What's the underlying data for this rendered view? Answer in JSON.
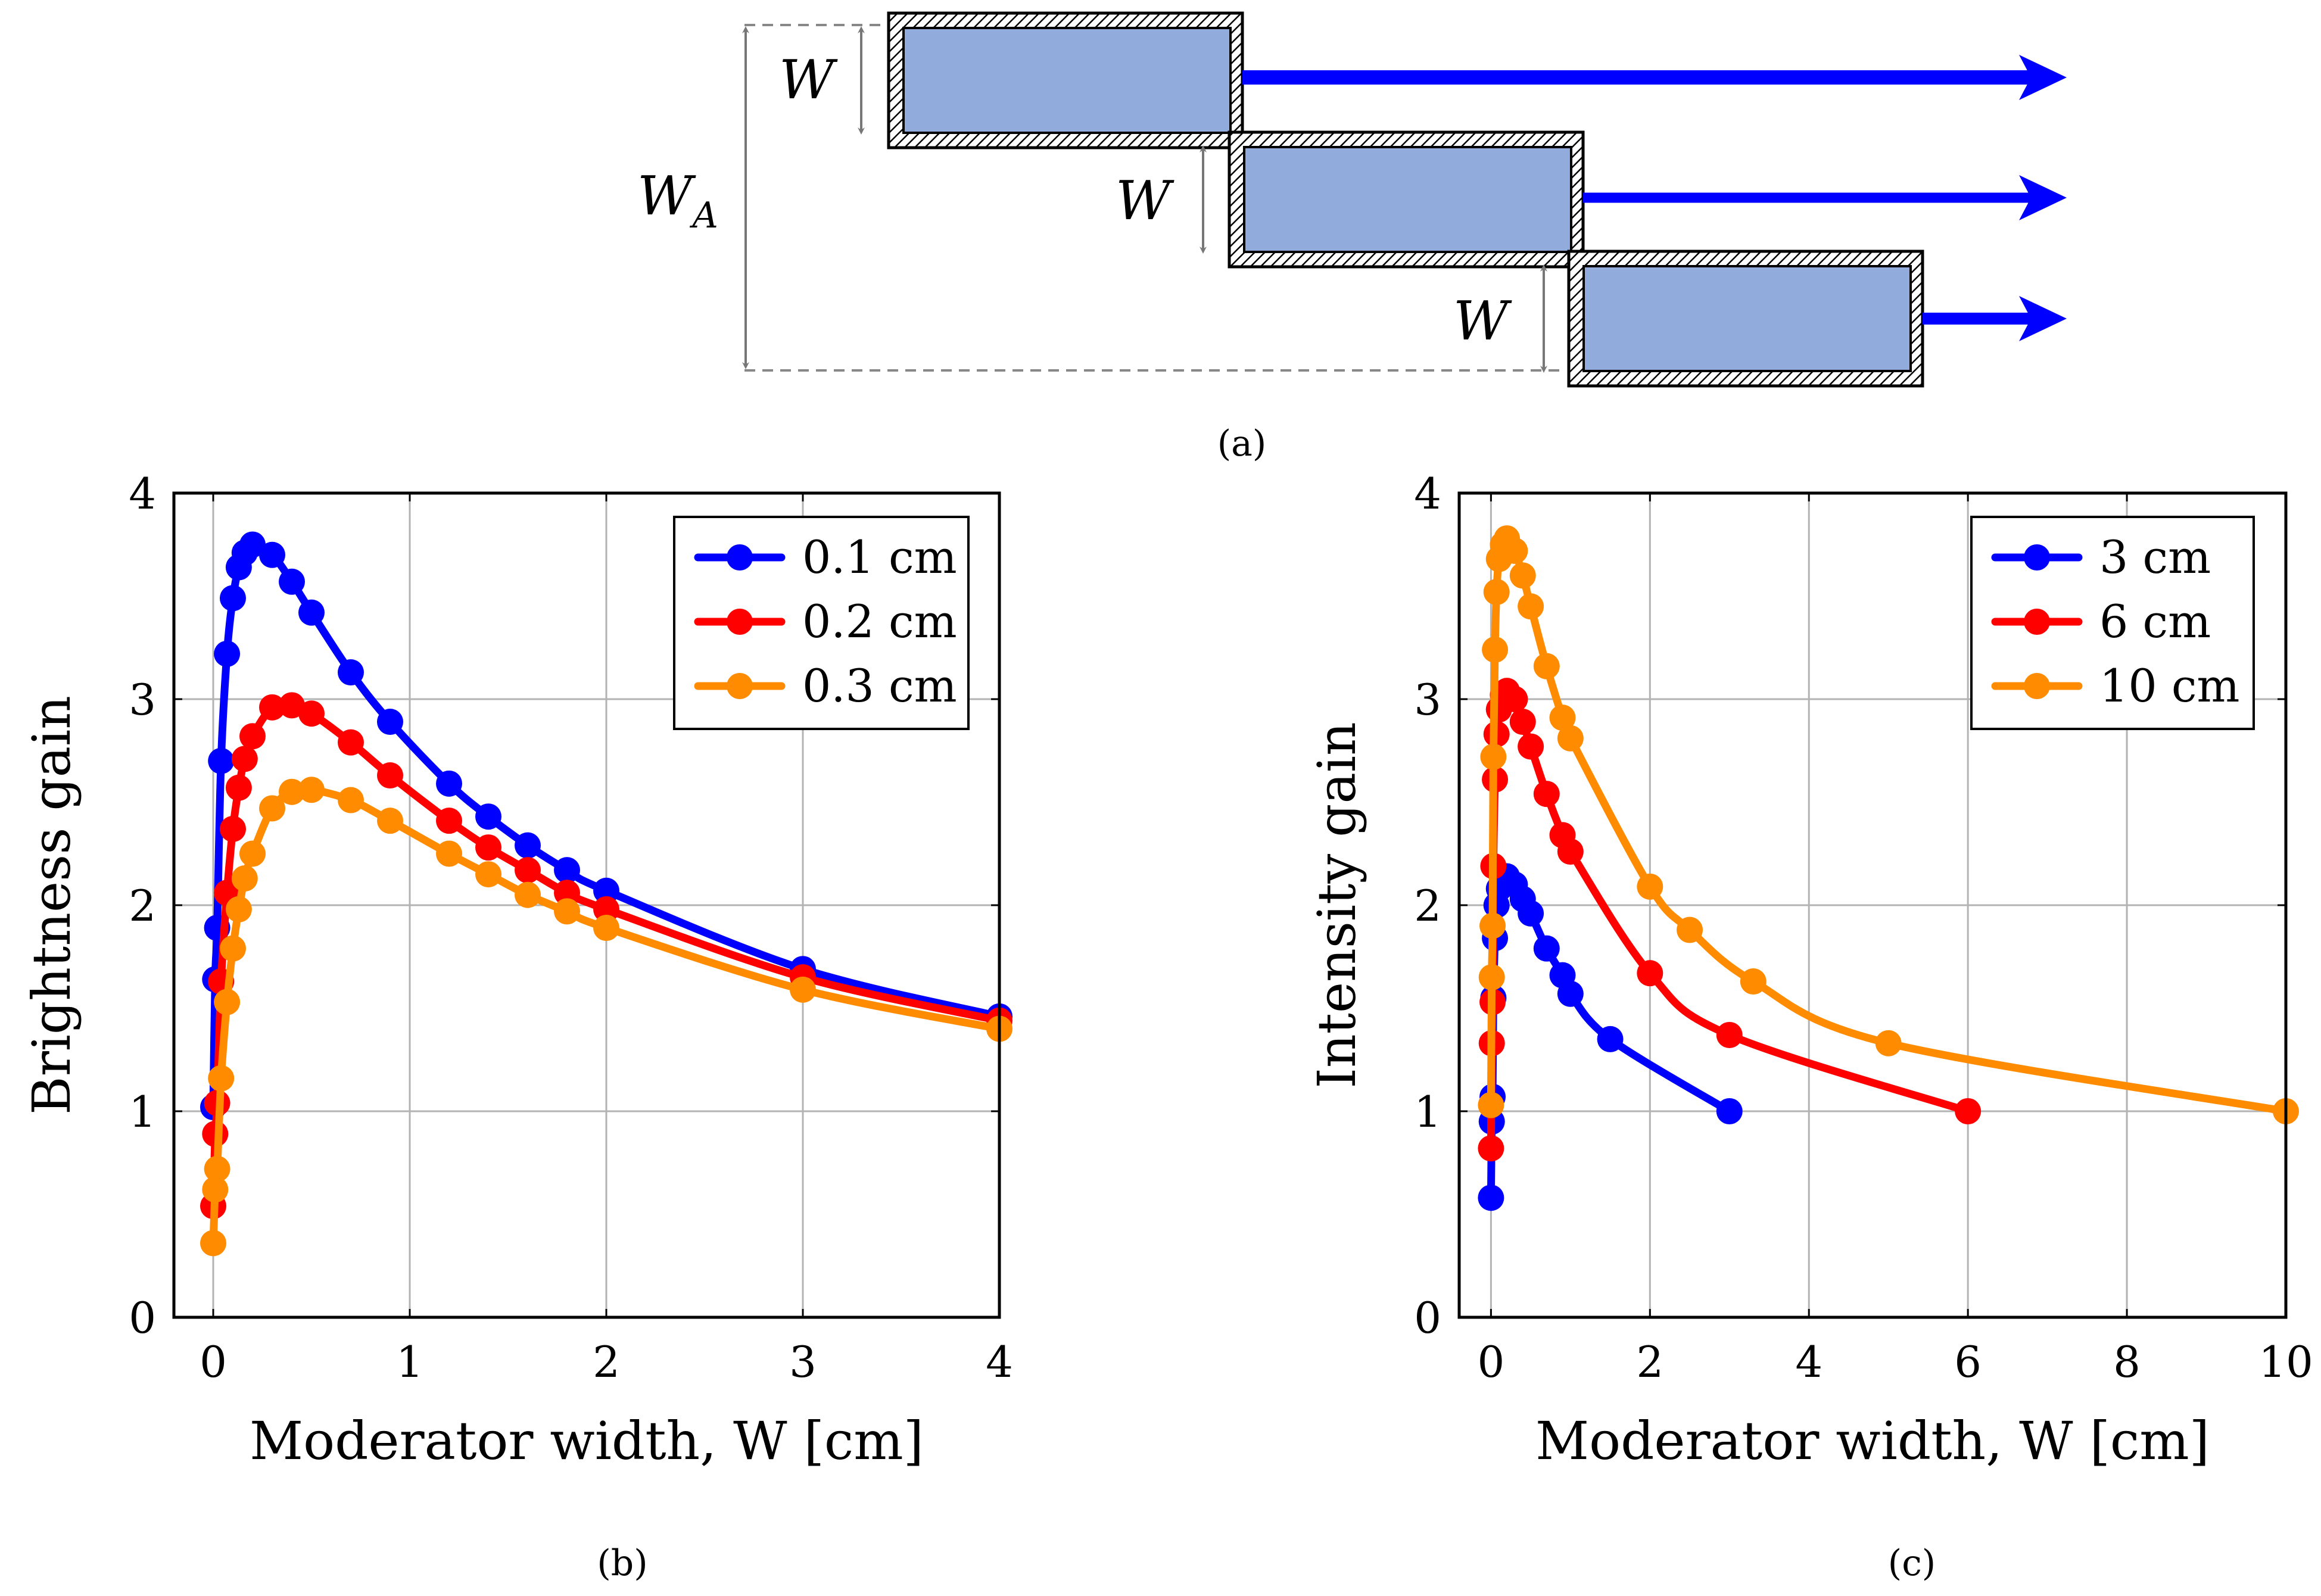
{
  "schematic": {
    "label_W": "W",
    "label_WA": "W",
    "label_WA_sub": "A",
    "block_fill": "#91acdc",
    "arrow_color": "#0000ff"
  },
  "captions": {
    "a": "(a)",
    "b": "(b)",
    "c": "(c)"
  },
  "chart_data": [
    {
      "type": "line",
      "id": "b",
      "title": "",
      "xlabel": "Moderator width, W [cm]",
      "ylabel": "Brightness gain",
      "xlim": [
        -0.2,
        4.0
      ],
      "ylim": [
        0,
        4
      ],
      "xticks": [
        0,
        1,
        2,
        3,
        4
      ],
      "yticks": [
        0,
        1,
        2,
        3,
        4
      ],
      "grid": true,
      "legend_position": "top-right",
      "series": [
        {
          "name": "0.1 cm",
          "color": "#0000ff",
          "x": [
            0.0,
            0.01,
            0.02,
            0.04,
            0.07,
            0.1,
            0.13,
            0.16,
            0.2,
            0.3,
            0.4,
            0.5,
            0.7,
            0.9,
            1.2,
            1.4,
            1.6,
            1.8,
            2.0,
            3.0,
            4.0
          ],
          "y": [
            1.02,
            1.64,
            1.89,
            2.7,
            3.22,
            3.49,
            3.64,
            3.71,
            3.75,
            3.7,
            3.57,
            3.42,
            3.13,
            2.89,
            2.59,
            2.43,
            2.29,
            2.17,
            2.07,
            1.69,
            1.46
          ]
        },
        {
          "name": "0.2 cm",
          "color": "#ff0000",
          "x": [
            0.0,
            0.01,
            0.02,
            0.04,
            0.07,
            0.1,
            0.13,
            0.16,
            0.2,
            0.3,
            0.4,
            0.5,
            0.7,
            0.9,
            1.2,
            1.4,
            1.6,
            1.8,
            2.0,
            3.0,
            4.0
          ],
          "y": [
            0.54,
            0.89,
            1.04,
            1.63,
            2.06,
            2.37,
            2.57,
            2.71,
            2.82,
            2.96,
            2.97,
            2.93,
            2.79,
            2.63,
            2.41,
            2.28,
            2.17,
            2.06,
            1.98,
            1.65,
            1.44
          ]
        },
        {
          "name": "0.3 cm",
          "color": "#ff8c00",
          "x": [
            0.0,
            0.01,
            0.02,
            0.04,
            0.07,
            0.1,
            0.13,
            0.16,
            0.2,
            0.3,
            0.4,
            0.5,
            0.7,
            0.9,
            1.2,
            1.4,
            1.6,
            1.8,
            2.0,
            3.0,
            4.0
          ],
          "y": [
            0.36,
            0.62,
            0.72,
            1.16,
            1.53,
            1.79,
            1.98,
            2.13,
            2.25,
            2.47,
            2.55,
            2.56,
            2.51,
            2.41,
            2.25,
            2.15,
            2.05,
            1.97,
            1.89,
            1.59,
            1.4
          ]
        }
      ]
    },
    {
      "type": "line",
      "id": "c",
      "title": "",
      "xlabel": "Moderator width, W [cm]",
      "ylabel": "Intensity gain",
      "xlim": [
        -0.4,
        10.0
      ],
      "ylim": [
        0,
        4
      ],
      "xticks": [
        0,
        2,
        4,
        6,
        8,
        10
      ],
      "yticks": [
        0,
        1,
        2,
        3,
        4
      ],
      "grid": true,
      "legend_position": "top-right",
      "series": [
        {
          "name": "3 cm",
          "color": "#0000ff",
          "x": [
            0.0,
            0.01,
            0.02,
            0.03,
            0.05,
            0.07,
            0.1,
            0.15,
            0.2,
            0.3,
            0.4,
            0.5,
            0.7,
            0.9,
            1.0,
            1.5,
            3.0
          ],
          "y": [
            0.58,
            0.95,
            1.07,
            1.55,
            1.84,
            2.0,
            2.08,
            2.12,
            2.14,
            2.1,
            2.03,
            1.96,
            1.79,
            1.66,
            1.57,
            1.35,
            1.0
          ]
        },
        {
          "name": "6 cm",
          "color": "#ff0000",
          "x": [
            0.0,
            0.01,
            0.02,
            0.03,
            0.05,
            0.07,
            0.1,
            0.15,
            0.2,
            0.3,
            0.4,
            0.5,
            0.7,
            0.9,
            1.0,
            2.0,
            3.0,
            6.0
          ],
          "y": [
            0.82,
            1.33,
            1.53,
            2.19,
            2.61,
            2.83,
            2.95,
            3.02,
            3.04,
            3.0,
            2.89,
            2.77,
            2.54,
            2.34,
            2.26,
            1.67,
            1.37,
            1.0
          ]
        },
        {
          "name": "10 cm",
          "color": "#ff8c00",
          "x": [
            0.0,
            0.01,
            0.02,
            0.03,
            0.05,
            0.07,
            0.1,
            0.15,
            0.2,
            0.3,
            0.4,
            0.5,
            0.7,
            0.9,
            1.0,
            2.0,
            2.5,
            3.3,
            5.0,
            10.0
          ],
          "y": [
            1.03,
            1.65,
            1.9,
            2.72,
            3.24,
            3.52,
            3.68,
            3.75,
            3.78,
            3.72,
            3.6,
            3.45,
            3.16,
            2.91,
            2.81,
            2.09,
            1.88,
            1.63,
            1.33,
            1.0
          ]
        }
      ]
    }
  ]
}
